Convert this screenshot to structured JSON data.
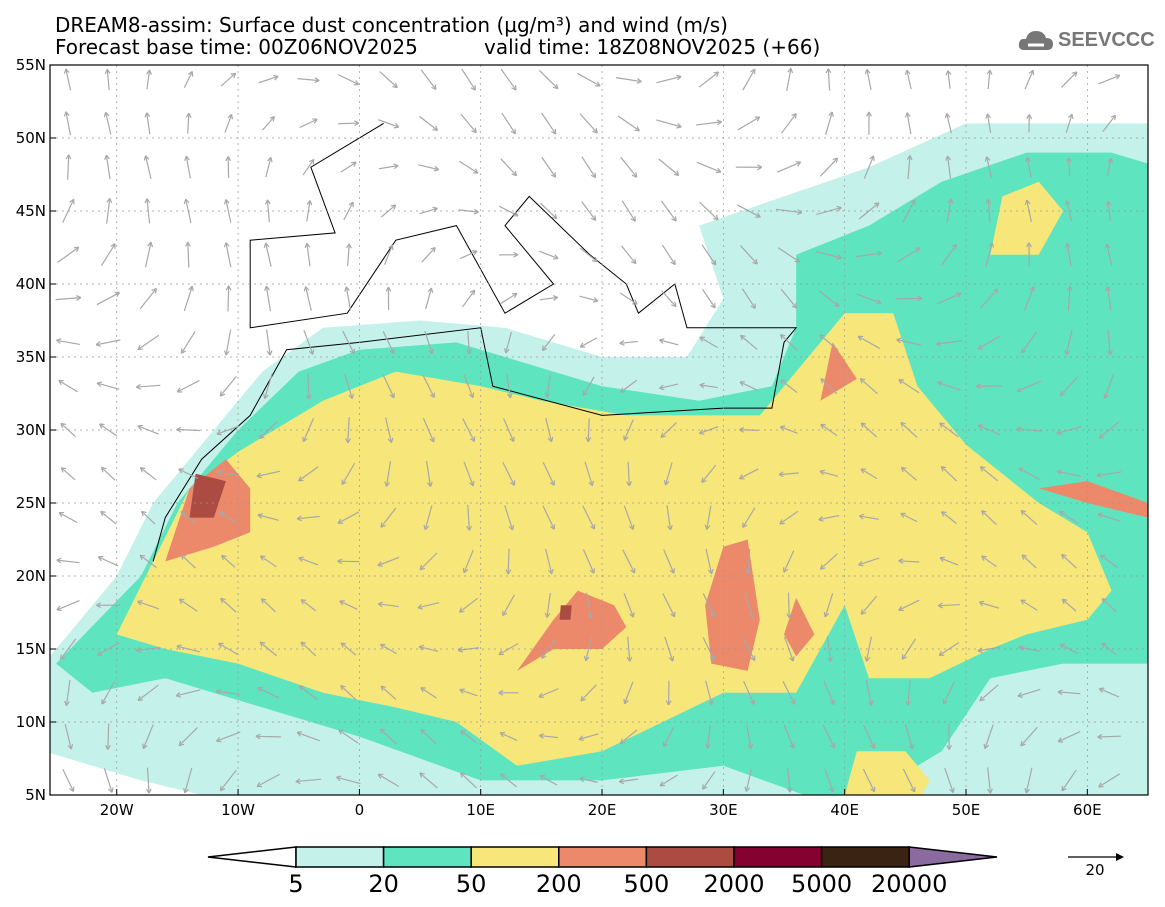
{
  "title": {
    "line1": "DREAM8-assim: Surface dust concentration (µg/m³) and wind (m/s)",
    "base": "Forecast base time: 00Z06NOV2025",
    "valid": "valid time: 18Z08NOV2025 (+66)"
  },
  "logo": {
    "text": "SEEVCCC",
    "icon": "cloud-icon"
  },
  "axes": {
    "lon_labels": [
      "20W",
      "10W",
      "0",
      "10E",
      "20E",
      "30E",
      "40E",
      "50E",
      "60E"
    ],
    "lon_values": [
      -20,
      -10,
      0,
      10,
      20,
      30,
      40,
      50,
      60
    ],
    "lat_labels": [
      "5N",
      "10N",
      "15N",
      "20N",
      "25N",
      "30N",
      "35N",
      "40N",
      "45N",
      "50N",
      "55N"
    ],
    "lat_values": [
      5,
      10,
      15,
      20,
      25,
      30,
      35,
      40,
      45,
      50,
      55
    ],
    "lon_range": [
      -25.5,
      65
    ],
    "lat_range": [
      5,
      55
    ]
  },
  "colorbar": {
    "labels": [
      "5",
      "20",
      "50",
      "200",
      "500",
      "2000",
      "5000",
      "20000"
    ],
    "colors": [
      "#c4f2ea",
      "#5ee5bf",
      "#f7e67a",
      "#ec896a",
      "#ab4b42",
      "#850230",
      "#3a2312"
    ],
    "over_color": "#8b6aa0",
    "under_color": "#ffffff"
  },
  "wind_ref": {
    "label": "20",
    "unit": "m/s"
  },
  "arrow_color": "#a8a8a8"
}
